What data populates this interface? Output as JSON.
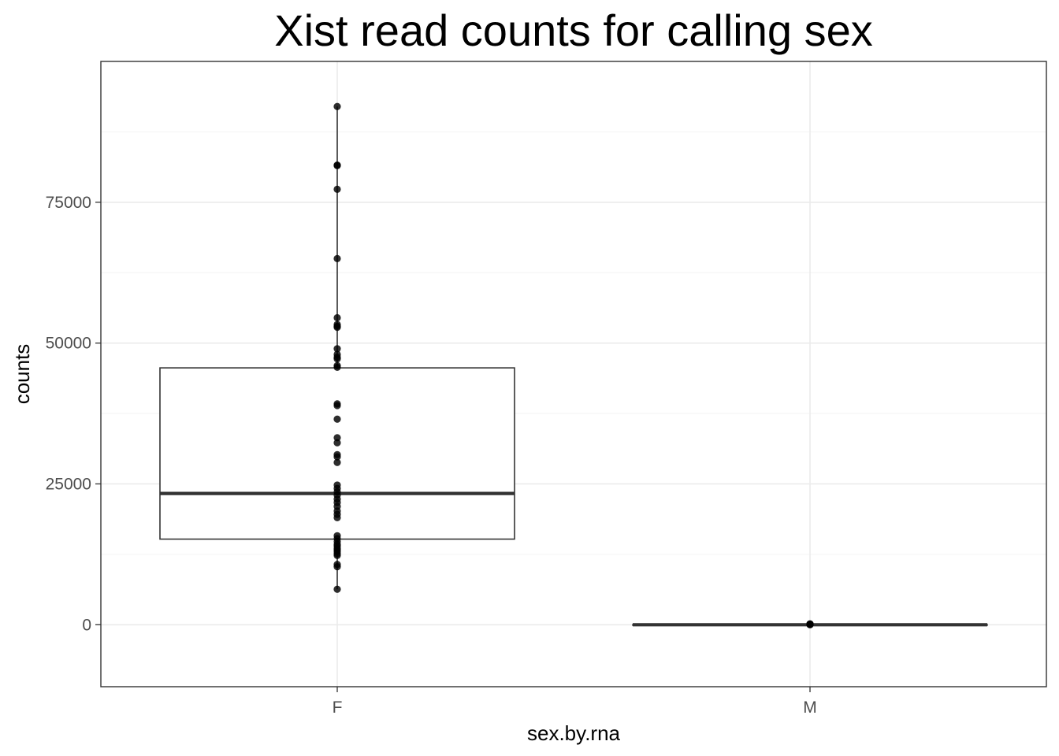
{
  "chart_data": {
    "type": "box",
    "title": "Xist read counts for calling sex",
    "xlabel": "sex.by.rna",
    "ylabel": "counts",
    "categories": [
      "F",
      "M"
    ],
    "ylim": [
      -11000,
      100000
    ],
    "yticks": [
      0,
      25000,
      50000,
      75000
    ],
    "ytick_labels": [
      "0",
      "25000",
      "50000",
      "75000"
    ],
    "grid": true,
    "boxes": [
      {
        "category": "F",
        "q1": 15200,
        "median": 23300,
        "q3": 45600,
        "whisker_low": 6300,
        "whisker_high": 92000
      },
      {
        "category": "M",
        "q1": 0,
        "median": 0,
        "q3": 0,
        "whisker_low": 0,
        "whisker_high": 0
      }
    ],
    "points": {
      "F": [
        92000,
        81600,
        81500,
        77300,
        65000,
        54500,
        53300,
        53000,
        52800,
        49000,
        48000,
        47500,
        47200,
        46000,
        45700,
        39200,
        38900,
        36500,
        33200,
        32300,
        30200,
        29800,
        28800,
        24800,
        24200,
        23600,
        23000,
        22300,
        21700,
        21000,
        20200,
        19600,
        19000,
        15800,
        15300,
        14800,
        14300,
        14000,
        13600,
        13300,
        13000,
        12600,
        12300,
        10700,
        10300,
        6300
      ],
      "M": [
        0,
        40,
        80,
        120,
        160
      ]
    }
  }
}
